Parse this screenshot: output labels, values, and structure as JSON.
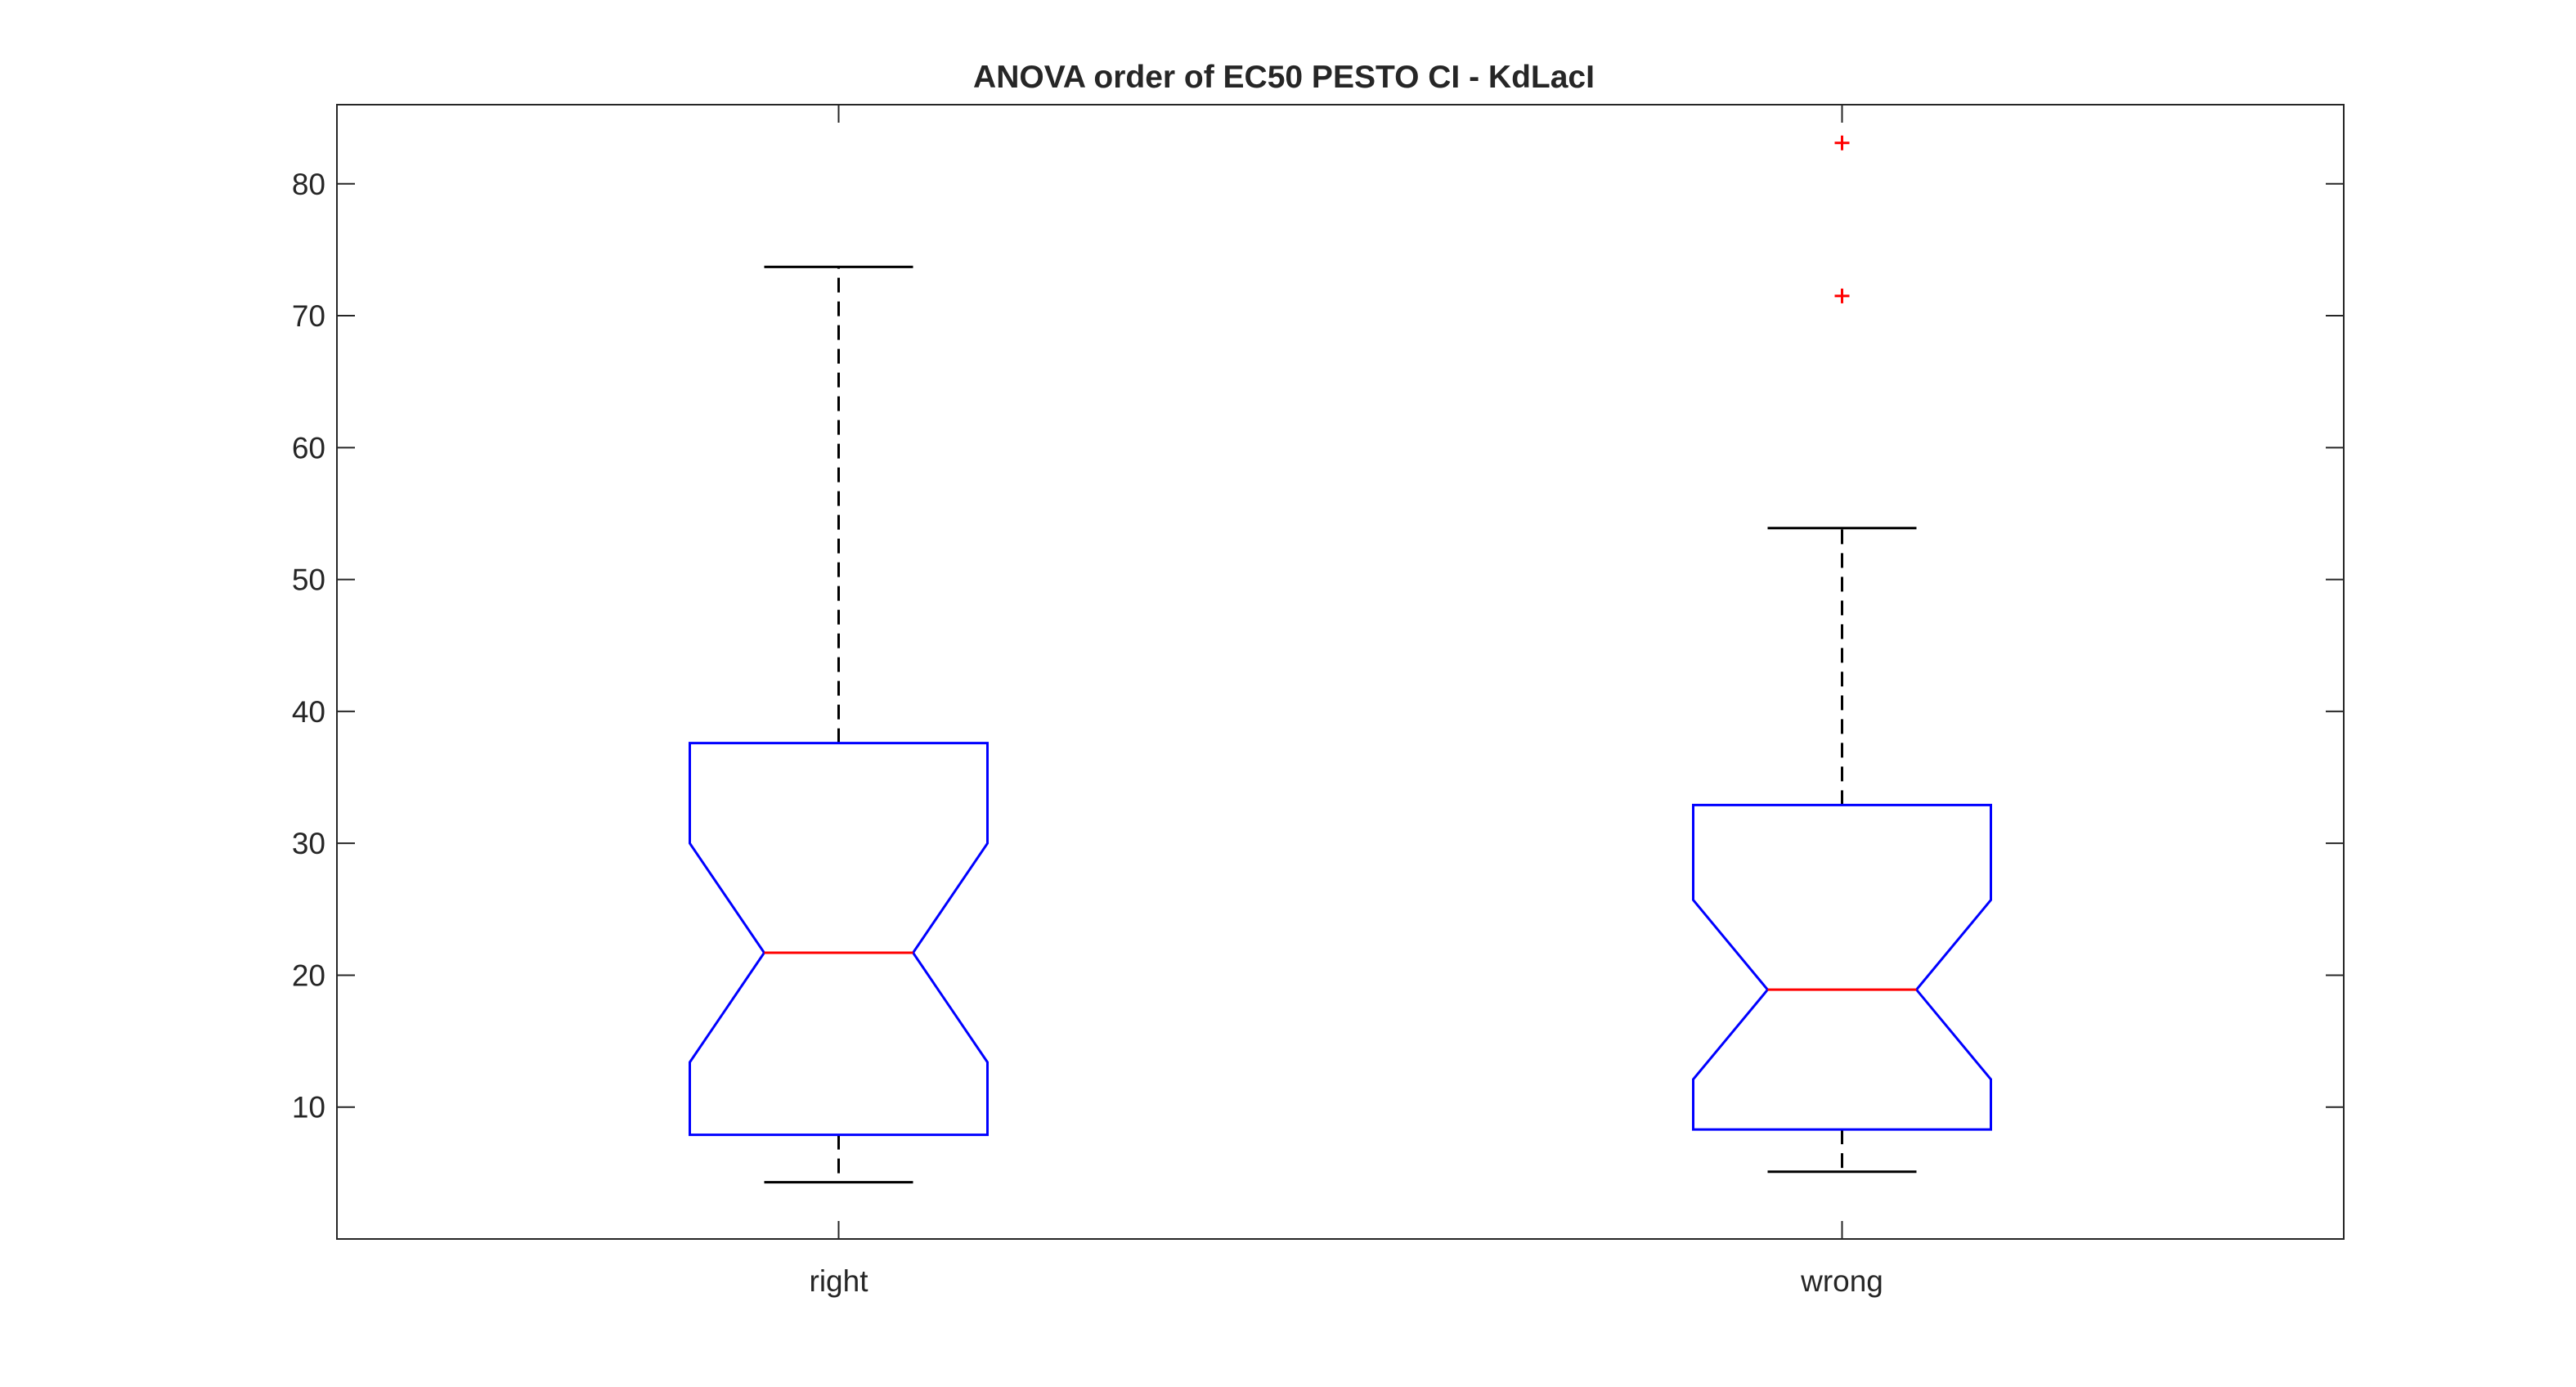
{
  "chart_data": {
    "type": "box",
    "title": "ANOVA order of EC50 PESTO CI - KdLacI",
    "xlabel": "",
    "ylabel": "",
    "categories": [
      "right",
      "wrong"
    ],
    "ylim": [
      0,
      86
    ],
    "yticks": [
      10,
      20,
      30,
      40,
      50,
      60,
      70,
      80
    ],
    "ytick_labels": [
      "10",
      "20",
      "30",
      "40",
      "50",
      "60",
      "70",
      "80"
    ],
    "notched": true,
    "grid": false,
    "boxes": [
      {
        "category": "right",
        "whisker_low": 4.3,
        "q1": 7.9,
        "median": 21.7,
        "q3": 37.6,
        "whisker_high": 73.7,
        "notch_low": 13.4,
        "notch_high": 30.0,
        "outliers": []
      },
      {
        "category": "wrong",
        "whisker_low": 5.1,
        "q1": 8.3,
        "median": 18.9,
        "q3": 32.9,
        "whisker_high": 53.9,
        "notch_low": 12.1,
        "notch_high": 25.7,
        "outliers": [
          71.5,
          83.1
        ]
      }
    ],
    "colors": {
      "box": "#0000ff",
      "median": "#ff0000",
      "whisker": "#000000",
      "outlier": "#ff0000",
      "axes": "#262626"
    }
  }
}
